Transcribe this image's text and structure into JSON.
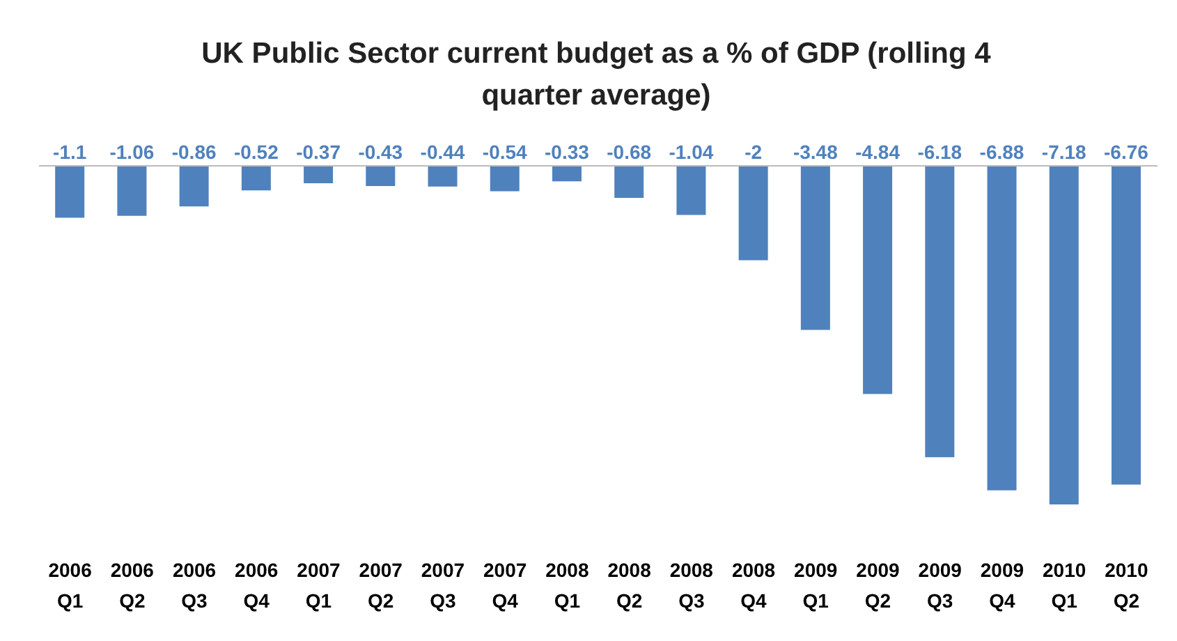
{
  "chart_data": {
    "type": "bar",
    "title": "UK Public Sector current budget as a % of GDP (rolling 4 quarter average)",
    "categories": [
      "2006 Q1",
      "2006 Q2",
      "2006 Q3",
      "2006 Q4",
      "2007 Q1",
      "2007 Q2",
      "2007 Q3",
      "2007 Q4",
      "2008 Q1",
      "2008 Q2",
      "2008 Q3",
      "2008 Q4",
      "2009 Q1",
      "2009 Q2",
      "2009 Q3",
      "2009 Q4",
      "2010 Q1",
      "2010 Q2"
    ],
    "series": [
      {
        "color": "#4f81bd",
        "values": [
          -1.1,
          -1.06,
          -0.86,
          -0.52,
          -0.37,
          -0.43,
          -0.44,
          -0.54,
          -0.33,
          -0.68,
          -1.04,
          -2,
          -3.48,
          -4.84,
          -6.18,
          -6.88,
          -7.18,
          -6.76
        ]
      }
    ],
    "data_labels": true
  }
}
